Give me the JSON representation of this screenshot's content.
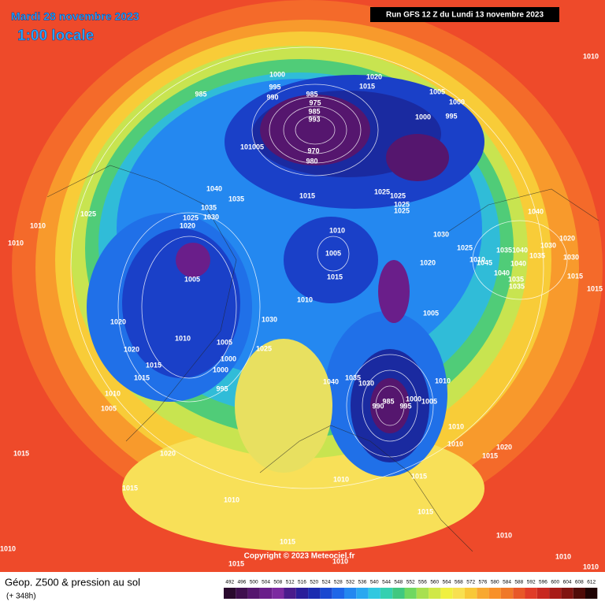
{
  "header": {
    "title": "Mardi 28 novembre 2023",
    "time": "1:00 locale",
    "run": "Run GFS 12 Z du Lundi 13 novembre 2023"
  },
  "map": {
    "copyright": "Copyright © 2023 Meteociel.fr",
    "isobar_labels": [
      985,
      1000,
      995,
      990,
      985,
      975,
      985,
      993,
      970,
      980,
      1020,
      1015,
      1005,
      1000,
      1000,
      995,
      1010,
      101005,
      1040,
      1035,
      1025,
      1010,
      1010,
      1025,
      1035,
      1030,
      1020,
      1015,
      1025,
      1025,
      1025,
      1025,
      1030,
      1040,
      1010,
      1005,
      1015,
      1010,
      1005,
      1020,
      1025,
      1010,
      1045,
      1035,
      1040,
      1035,
      1030,
      1020,
      1030,
      1015,
      1040,
      1040,
      1035,
      1035,
      1015,
      1005,
      1030,
      1010,
      1020,
      1020,
      1015,
      1015,
      1005,
      1025,
      1000,
      1000,
      995,
      1010,
      1005,
      1040,
      1035,
      1030,
      990,
      985,
      995,
      1000,
      1005,
      1010,
      1010,
      1015,
      1020,
      1010,
      1015,
      1020,
      1015,
      1010,
      1010,
      1015,
      1015,
      1015,
      1010,
      1015,
      1010,
      1010,
      1010,
      1010
    ]
  },
  "footer": {
    "title": "Géop. Z500 & pression au sol",
    "lead": "(+ 348h)",
    "scale": {
      "values": [
        492,
        496,
        500,
        504,
        508,
        512,
        516,
        520,
        524,
        528,
        532,
        536,
        540,
        544,
        548,
        552,
        556,
        560,
        564,
        568,
        572,
        576,
        580,
        584,
        588,
        592,
        596,
        600,
        604,
        608,
        612
      ],
      "colors": [
        "#2a0a2e",
        "#3f0f4e",
        "#55166e",
        "#6a1e8a",
        "#7c2aa0",
        "#4a1c8c",
        "#2a1e9a",
        "#1c2cb0",
        "#1a48d0",
        "#1e66e8",
        "#2488f0",
        "#2aa8f0",
        "#30c8e0",
        "#34d0b0",
        "#40c880",
        "#70d860",
        "#a8e050",
        "#d0e848",
        "#f0f040",
        "#f8e050",
        "#f8c838",
        "#f8a830",
        "#f89028",
        "#f07828",
        "#e85828",
        "#e03c28",
        "#c82820",
        "#a81c18",
        "#801410",
        "#500c08",
        "#200404"
      ]
    }
  }
}
